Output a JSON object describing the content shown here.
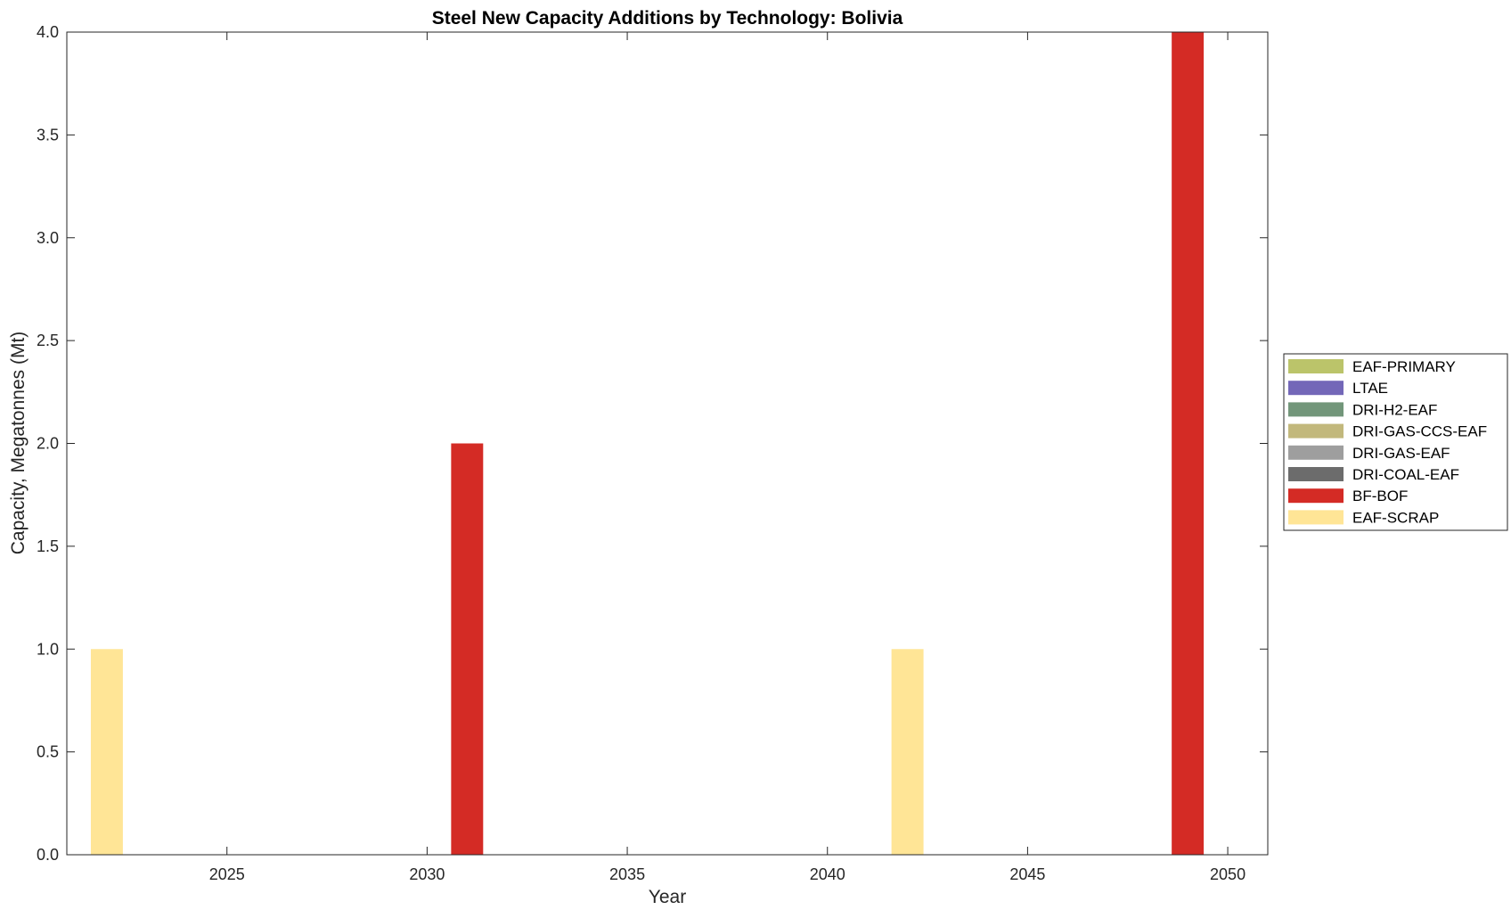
{
  "chart_data": {
    "type": "bar",
    "stacked": true,
    "title": "Steel New Capacity Additions by Technology: Bolivia",
    "xlabel": "Year",
    "ylabel": "Capacity, Megatonnes (Mt)",
    "xlim": [
      2021,
      2051
    ],
    "ylim": [
      0,
      4
    ],
    "xticks": [
      2025,
      2030,
      2035,
      2040,
      2045,
      2050
    ],
    "yticks": [
      "0.0",
      "0.5",
      "1.0",
      "1.5",
      "2.0",
      "2.5",
      "3.0",
      "3.5",
      "4.0"
    ],
    "legend_position": "right",
    "bar_width_years": 0.8,
    "series": [
      {
        "name": "EAF-PRIMARY",
        "color": "#BBC46A",
        "points": []
      },
      {
        "name": "LTAE",
        "color": "#7367B8",
        "points": []
      },
      {
        "name": "DRI-H2-EAF",
        "color": "#72967A",
        "points": []
      },
      {
        "name": "DRI-GAS-CCS-EAF",
        "color": "#C2B87C",
        "points": []
      },
      {
        "name": "DRI-GAS-EAF",
        "color": "#9E9E9E",
        "points": []
      },
      {
        "name": "DRI-COAL-EAF",
        "color": "#6C6C6C",
        "points": []
      },
      {
        "name": "BF-BOF",
        "color": "#D42B25",
        "points": [
          {
            "x": 2031,
            "y": 2
          },
          {
            "x": 2049,
            "y": 4
          }
        ]
      },
      {
        "name": "EAF-SCRAP",
        "color": "#FFE596",
        "points": [
          {
            "x": 2022,
            "y": 1
          },
          {
            "x": 2042,
            "y": 1
          }
        ]
      }
    ]
  }
}
